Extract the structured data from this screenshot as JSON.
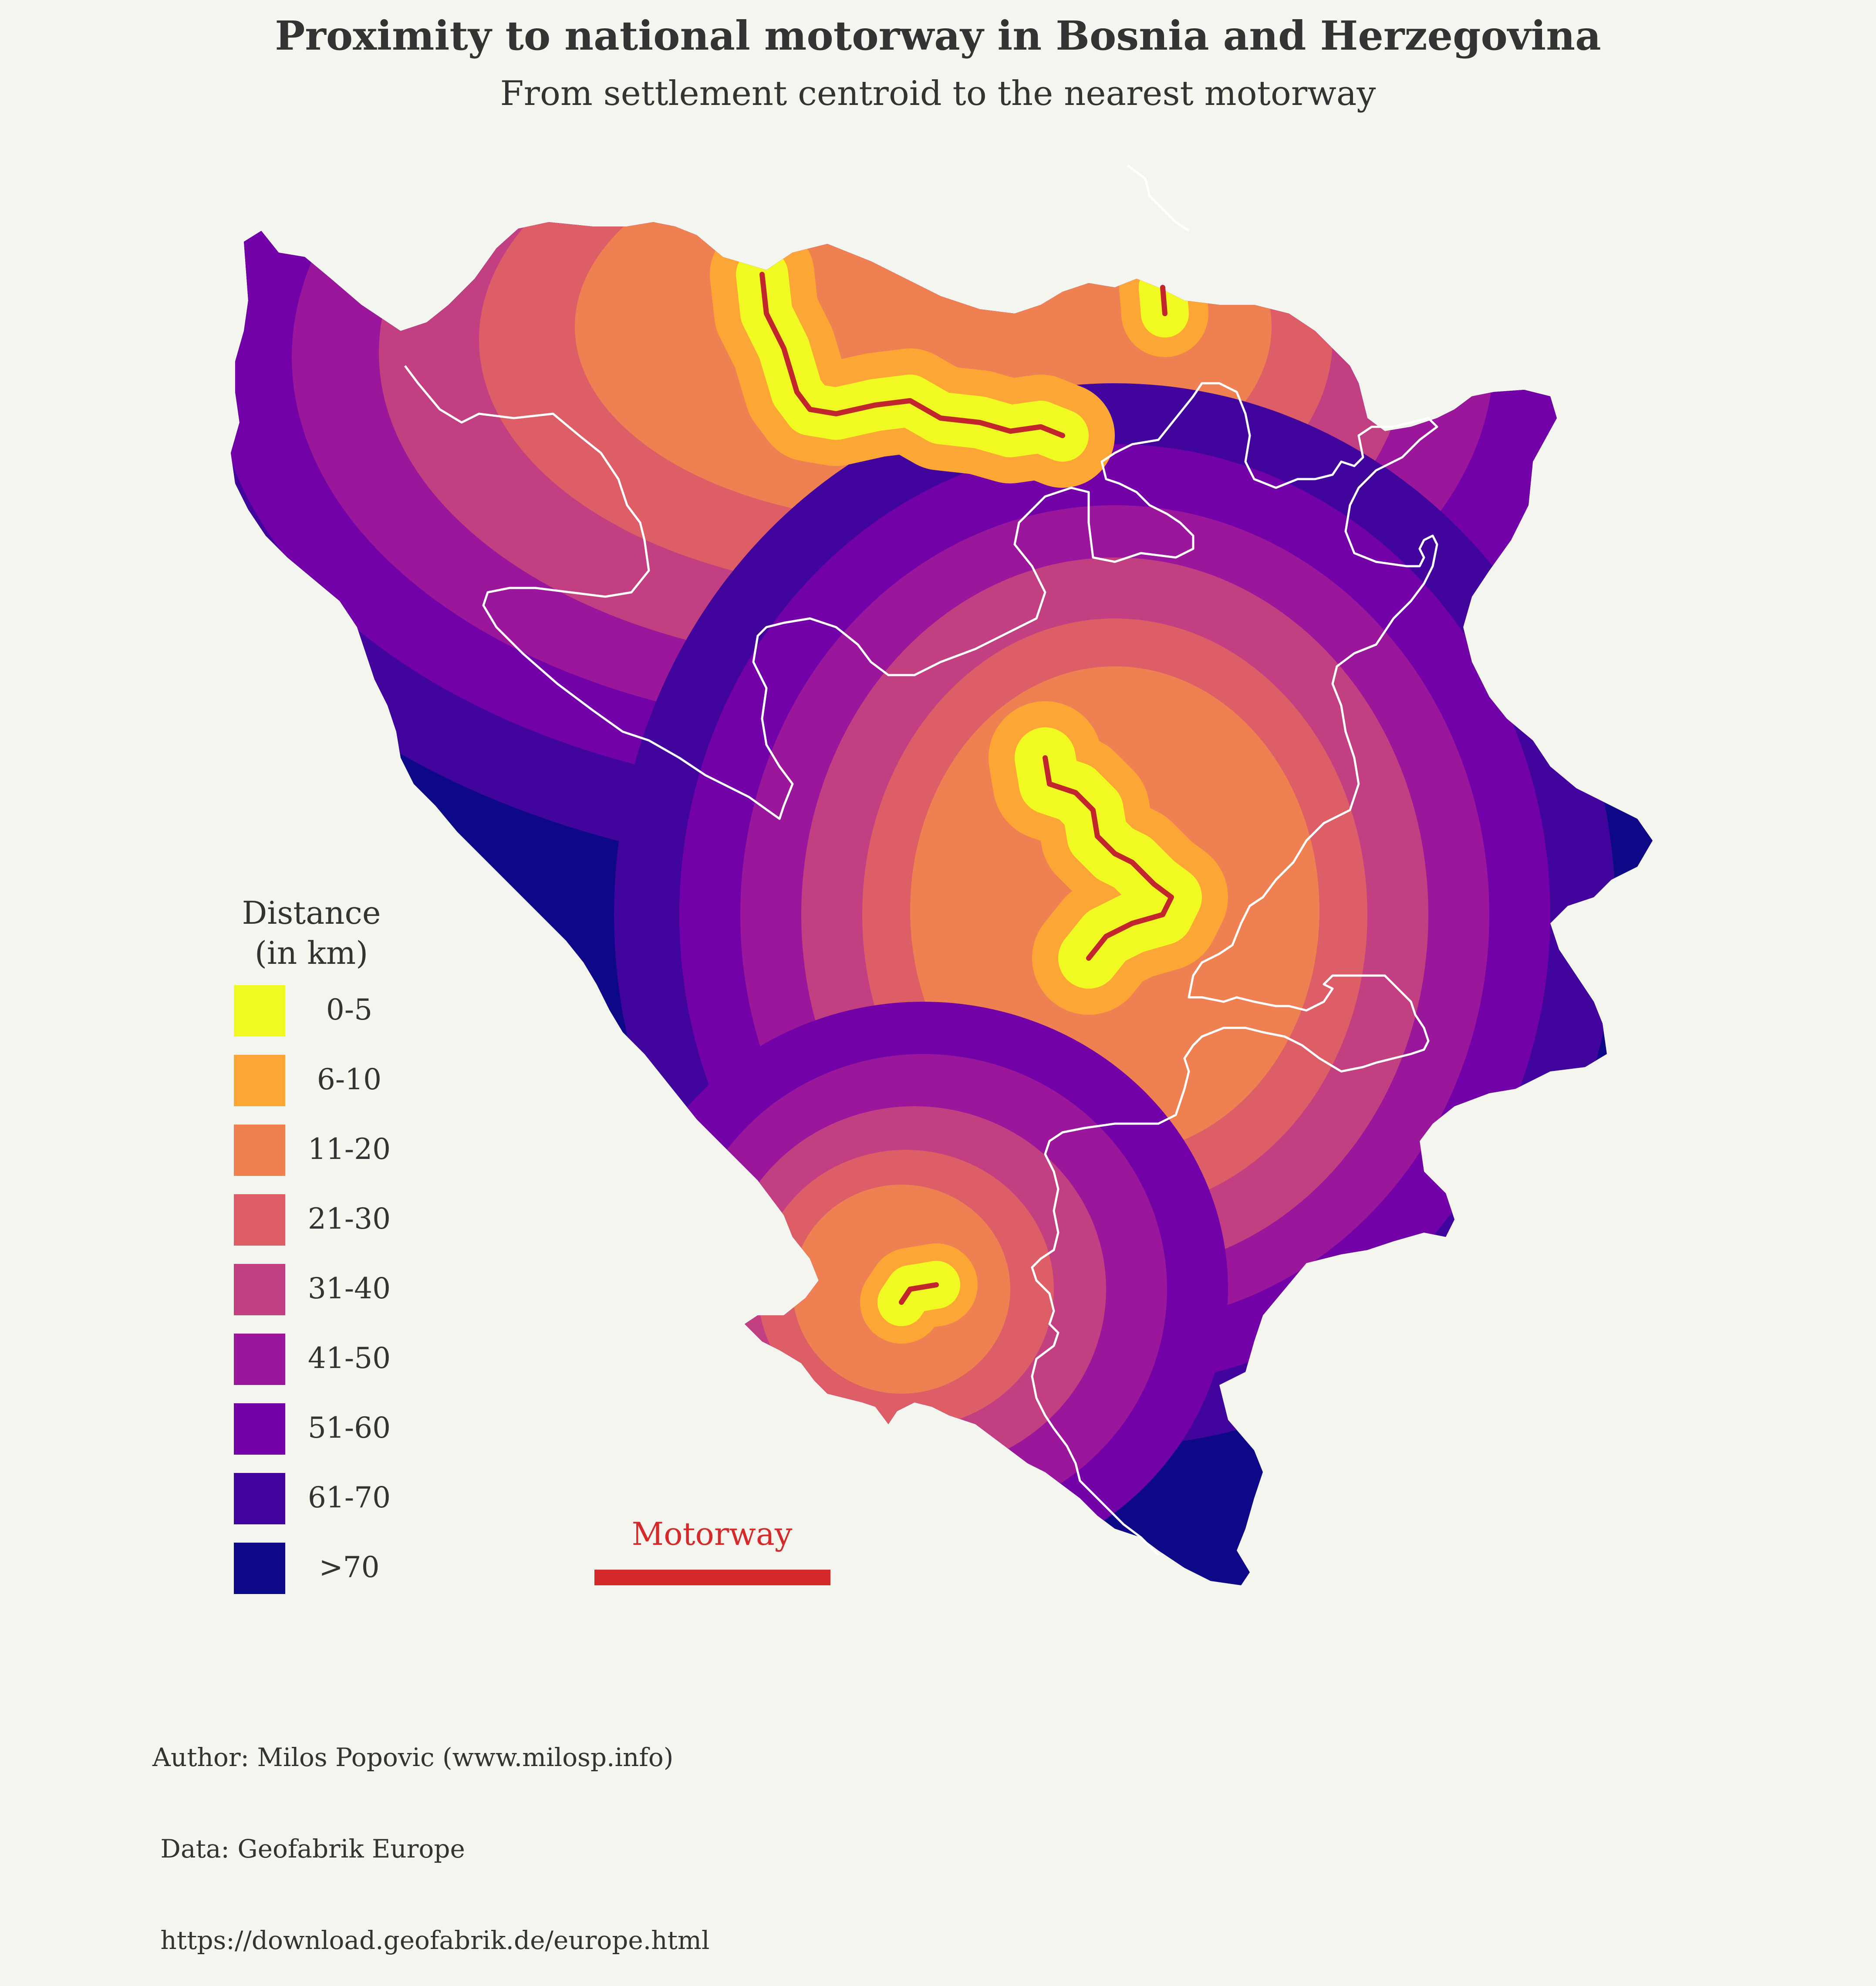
{
  "title": "Proximity to national motorway in Bosnia and Herzegovina",
  "subtitle": "From settlement centroid to the nearest motorway",
  "legend": {
    "title_line1": "Distance",
    "title_line2": "(in km)",
    "items": [
      {
        "label": "0-5",
        "color": "#f0f921"
      },
      {
        "label": "6-10",
        "color": "#fca636"
      },
      {
        "label": "11-20",
        "color": "#ef8052"
      },
      {
        "label": "21-30",
        "color": "#dd5e66"
      },
      {
        "label": "31-40",
        "color": "#c23f81"
      },
      {
        "label": "41-50",
        "color": "#9a179b"
      },
      {
        "label": "51-60",
        "color": "#7301a8"
      },
      {
        "label": "61-70",
        "color": "#41049d"
      },
      {
        "label": ">70",
        "color": "#0d0887"
      }
    ]
  },
  "motorway_legend": {
    "label": "Motorway",
    "color": "#d42a2a"
  },
  "credits": {
    "line1": "Author: Milos Popovic (www.milosp.info)",
    "line2": " Data: Geofabrik Europe",
    "line3": " https://download.geofabrik.de/europe.html"
  },
  "map_colors": {
    "background": "#f5f5f0",
    "border": "#ffffff",
    "motorway": "#c0262c"
  }
}
